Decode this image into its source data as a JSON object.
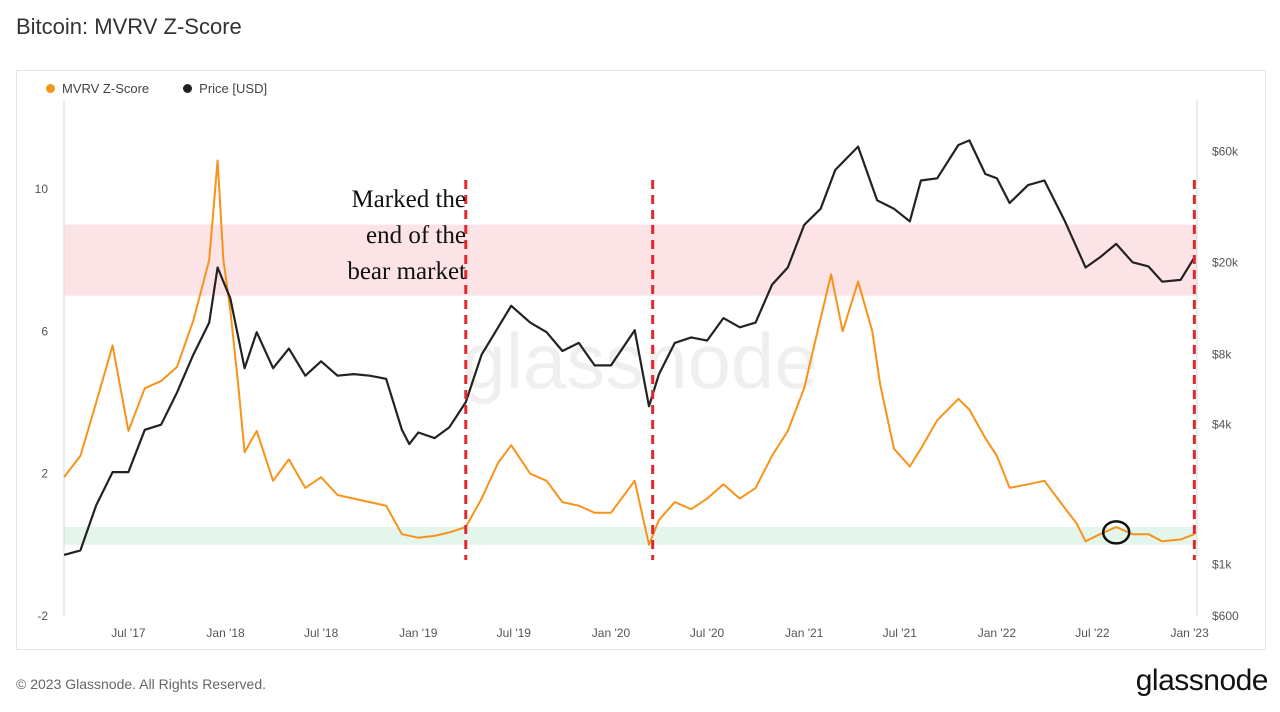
{
  "header": {
    "title": "Bitcoin: MVRV Z-Score"
  },
  "legend": [
    {
      "label": "MVRV Z-Score",
      "color": "#f7931a"
    },
    {
      "label": "Price [USD]",
      "color": "#222222"
    }
  ],
  "annotation": {
    "lines": [
      "Marked the",
      "end of the",
      "bear market"
    ]
  },
  "watermark": "glassnode",
  "footer": {
    "copyright": "© 2023 Glassnode. All Rights Reserved.",
    "brand": "glassnode"
  },
  "chart_data": {
    "type": "line",
    "x_ticks": [
      "Jul '17",
      "Jan '18",
      "Jul '18",
      "Jan '19",
      "Jul '19",
      "Jan '20",
      "Jul '20",
      "Jan '21",
      "Jul '21",
      "Jan '22",
      "Jul '22",
      "Jan '23"
    ],
    "x_tick_dates": [
      "2017-07-01",
      "2018-01-01",
      "2018-07-01",
      "2019-01-01",
      "2019-07-01",
      "2020-01-01",
      "2020-07-01",
      "2021-01-01",
      "2021-07-01",
      "2022-01-01",
      "2022-07-01",
      "2023-01-01"
    ],
    "x_range": [
      "2017-03-01",
      "2023-01-15"
    ],
    "y_left": {
      "ticks": [
        "10",
        "6",
        "2",
        "-2"
      ],
      "tick_values": [
        10,
        6,
        2,
        -2
      ],
      "range": [
        -2,
        12.5
      ]
    },
    "y_right": {
      "ticks": [
        "$60k",
        "$20k",
        "$8k",
        "$4k",
        "$1k",
        "$600"
      ],
      "tick_values": [
        60000,
        20000,
        8000,
        4000,
        1000,
        600
      ],
      "scale": "log",
      "range": [
        600,
        100000
      ]
    },
    "bands": [
      {
        "axis": "left",
        "from": 7.0,
        "to": 9.0,
        "color": "#fce4e6"
      },
      {
        "axis": "left",
        "from": 0.0,
        "to": 0.5,
        "color": "#e4f5ec"
      }
    ],
    "markers": [
      {
        "type": "vertical-dashed",
        "date": "2019-04-01",
        "color": "#e0282e"
      },
      {
        "type": "vertical-dashed",
        "date": "2020-03-20",
        "color": "#e0282e"
      },
      {
        "type": "vertical-dashed",
        "date": "2023-01-10",
        "color": "#e0282e"
      },
      {
        "type": "circle",
        "date": "2022-08-15",
        "value": 0.35,
        "color": "#111111"
      }
    ],
    "series": [
      {
        "name": "MVRV Z-Score",
        "axis": "left",
        "color": "#f7931a",
        "points": [
          [
            "2017-03-01",
            1.9
          ],
          [
            "2017-04-01",
            2.5
          ],
          [
            "2017-05-01",
            4.0
          ],
          [
            "2017-06-01",
            5.6
          ],
          [
            "2017-07-01",
            3.2
          ],
          [
            "2017-08-01",
            4.4
          ],
          [
            "2017-09-01",
            4.6
          ],
          [
            "2017-10-01",
            5.0
          ],
          [
            "2017-11-01",
            6.3
          ],
          [
            "2017-12-01",
            8.0
          ],
          [
            "2017-12-17",
            10.8
          ],
          [
            "2017-12-28",
            8.0
          ],
          [
            "2018-01-10",
            6.6
          ],
          [
            "2018-01-25",
            4.5
          ],
          [
            "2018-02-06",
            2.6
          ],
          [
            "2018-03-01",
            3.2
          ],
          [
            "2018-04-01",
            1.8
          ],
          [
            "2018-05-01",
            2.4
          ],
          [
            "2018-06-01",
            1.6
          ],
          [
            "2018-07-01",
            1.9
          ],
          [
            "2018-08-01",
            1.4
          ],
          [
            "2018-09-01",
            1.3
          ],
          [
            "2018-10-01",
            1.2
          ],
          [
            "2018-11-01",
            1.1
          ],
          [
            "2018-12-01",
            0.3
          ],
          [
            "2019-01-01",
            0.2
          ],
          [
            "2019-02-01",
            0.25
          ],
          [
            "2019-03-01",
            0.35
          ],
          [
            "2019-04-01",
            0.5
          ],
          [
            "2019-05-01",
            1.3
          ],
          [
            "2019-06-01",
            2.3
          ],
          [
            "2019-06-26",
            2.8
          ],
          [
            "2019-08-01",
            2.0
          ],
          [
            "2019-09-01",
            1.8
          ],
          [
            "2019-10-01",
            1.2
          ],
          [
            "2019-11-01",
            1.1
          ],
          [
            "2019-12-01",
            0.9
          ],
          [
            "2020-01-01",
            0.9
          ],
          [
            "2020-02-15",
            1.8
          ],
          [
            "2020-03-13",
            0.0
          ],
          [
            "2020-04-01",
            0.7
          ],
          [
            "2020-05-01",
            1.2
          ],
          [
            "2020-06-01",
            1.0
          ],
          [
            "2020-07-01",
            1.3
          ],
          [
            "2020-08-01",
            1.7
          ],
          [
            "2020-09-01",
            1.3
          ],
          [
            "2020-10-01",
            1.6
          ],
          [
            "2020-11-01",
            2.5
          ],
          [
            "2020-12-01",
            3.2
          ],
          [
            "2021-01-01",
            4.4
          ],
          [
            "2021-01-20",
            5.6
          ],
          [
            "2021-02-21",
            7.6
          ],
          [
            "2021-03-15",
            6.0
          ],
          [
            "2021-04-13",
            7.4
          ],
          [
            "2021-05-10",
            6.0
          ],
          [
            "2021-05-25",
            4.5
          ],
          [
            "2021-06-20",
            2.7
          ],
          [
            "2021-07-20",
            2.2
          ],
          [
            "2021-08-10",
            2.7
          ],
          [
            "2021-09-10",
            3.5
          ],
          [
            "2021-10-20",
            4.1
          ],
          [
            "2021-11-10",
            3.8
          ],
          [
            "2021-12-10",
            3.0
          ],
          [
            "2022-01-01",
            2.5
          ],
          [
            "2022-01-25",
            1.6
          ],
          [
            "2022-03-01",
            1.7
          ],
          [
            "2022-04-01",
            1.8
          ],
          [
            "2022-05-01",
            1.2
          ],
          [
            "2022-06-01",
            0.6
          ],
          [
            "2022-06-18",
            0.1
          ],
          [
            "2022-07-15",
            0.3
          ],
          [
            "2022-08-15",
            0.5
          ],
          [
            "2022-09-15",
            0.3
          ],
          [
            "2022-10-15",
            0.3
          ],
          [
            "2022-11-10",
            0.1
          ],
          [
            "2022-12-15",
            0.15
          ],
          [
            "2023-01-10",
            0.3
          ]
        ]
      },
      {
        "name": "Price [USD]",
        "axis": "right",
        "color": "#222222",
        "points": [
          [
            "2017-03-01",
            1100
          ],
          [
            "2017-04-01",
            1150
          ],
          [
            "2017-05-01",
            1800
          ],
          [
            "2017-06-01",
            2500
          ],
          [
            "2017-07-01",
            2500
          ],
          [
            "2017-08-01",
            3800
          ],
          [
            "2017-09-01",
            4000
          ],
          [
            "2017-10-01",
            5500
          ],
          [
            "2017-11-01",
            8000
          ],
          [
            "2017-12-01",
            11000
          ],
          [
            "2017-12-17",
            19000
          ],
          [
            "2018-01-10",
            14000
          ],
          [
            "2018-02-06",
            7000
          ],
          [
            "2018-03-01",
            10000
          ],
          [
            "2018-04-01",
            7000
          ],
          [
            "2018-05-01",
            8500
          ],
          [
            "2018-06-01",
            6500
          ],
          [
            "2018-07-01",
            7500
          ],
          [
            "2018-08-01",
            6500
          ],
          [
            "2018-09-01",
            6600
          ],
          [
            "2018-10-01",
            6500
          ],
          [
            "2018-11-01",
            6300
          ],
          [
            "2018-12-01",
            3800
          ],
          [
            "2018-12-15",
            3300
          ],
          [
            "2019-01-01",
            3700
          ],
          [
            "2019-02-01",
            3500
          ],
          [
            "2019-03-01",
            3900
          ],
          [
            "2019-04-01",
            5000
          ],
          [
            "2019-05-01",
            8000
          ],
          [
            "2019-06-26",
            13000
          ],
          [
            "2019-08-01",
            11000
          ],
          [
            "2019-09-01",
            10000
          ],
          [
            "2019-10-01",
            8300
          ],
          [
            "2019-11-01",
            9000
          ],
          [
            "2019-12-01",
            7200
          ],
          [
            "2020-01-01",
            7200
          ],
          [
            "2020-02-15",
            10200
          ],
          [
            "2020-03-13",
            4800
          ],
          [
            "2020-04-01",
            6600
          ],
          [
            "2020-05-01",
            9000
          ],
          [
            "2020-06-01",
            9500
          ],
          [
            "2020-07-01",
            9200
          ],
          [
            "2020-08-01",
            11500
          ],
          [
            "2020-09-01",
            10500
          ],
          [
            "2020-10-01",
            11000
          ],
          [
            "2020-11-01",
            16000
          ],
          [
            "2020-12-01",
            19000
          ],
          [
            "2021-01-01",
            29000
          ],
          [
            "2021-02-01",
            34000
          ],
          [
            "2021-03-01",
            50000
          ],
          [
            "2021-04-13",
            63000
          ],
          [
            "2021-05-19",
            37000
          ],
          [
            "2021-06-20",
            34000
          ],
          [
            "2021-07-20",
            30000
          ],
          [
            "2021-08-10",
            45000
          ],
          [
            "2021-09-10",
            46000
          ],
          [
            "2021-10-20",
            64000
          ],
          [
            "2021-11-10",
            67000
          ],
          [
            "2021-12-10",
            48000
          ],
          [
            "2022-01-01",
            46000
          ],
          [
            "2022-01-25",
            36000
          ],
          [
            "2022-03-01",
            43000
          ],
          [
            "2022-04-01",
            45000
          ],
          [
            "2022-05-10",
            30000
          ],
          [
            "2022-06-18",
            19000
          ],
          [
            "2022-07-15",
            21000
          ],
          [
            "2022-08-15",
            24000
          ],
          [
            "2022-09-15",
            20000
          ],
          [
            "2022-10-15",
            19200
          ],
          [
            "2022-11-10",
            16500
          ],
          [
            "2022-12-15",
            16800
          ],
          [
            "2023-01-10",
            21000
          ]
        ]
      }
    ]
  }
}
